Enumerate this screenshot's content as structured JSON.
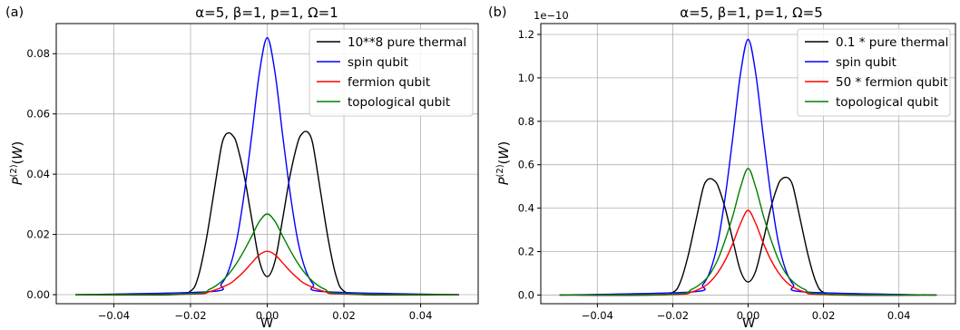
{
  "chart_data": [
    {
      "panel": "(a)",
      "type": "line",
      "title": "α=5, β=1, p=1, Ω=1",
      "xlabel": "W",
      "ylabel": "P(2)(W)",
      "xlim": [
        -0.055,
        0.055
      ],
      "ylim": [
        -0.003,
        0.09
      ],
      "xticks": [
        -0.04,
        -0.02,
        0.0,
        0.02,
        0.04
      ],
      "xtick_labels": [
        "−0.04",
        "−0.02",
        "0.00",
        "0.02",
        "0.04"
      ],
      "yticks": [
        0.0,
        0.02,
        0.04,
        0.06,
        0.08
      ],
      "ytick_labels": [
        "0.00",
        "0.02",
        "0.04",
        "0.06",
        "0.08"
      ],
      "y_offset_label": "",
      "grid": true,
      "legend_position": "upper-right",
      "series": [
        {
          "name": "10**8 pure thermal",
          "color": "#000000",
          "x": [
            -0.05,
            -0.025,
            -0.02,
            -0.018,
            -0.016,
            -0.014,
            -0.012,
            -0.011,
            -0.01,
            -0.009,
            -0.008,
            -0.006,
            -0.004,
            -0.002,
            0.0,
            0.002,
            0.004,
            0.006,
            0.008,
            0.009,
            0.01,
            0.011,
            0.012,
            0.014,
            0.016,
            0.018,
            0.02,
            0.025,
            0.05
          ],
          "y": [
            0.0,
            0.0,
            0.0012,
            0.0059,
            0.0175,
            0.0331,
            0.0489,
            0.0528,
            0.0537,
            0.0528,
            0.0503,
            0.0395,
            0.0249,
            0.011,
            0.006,
            0.011,
            0.025,
            0.0398,
            0.0507,
            0.0533,
            0.0542,
            0.0533,
            0.0493,
            0.0334,
            0.0177,
            0.006,
            0.0012,
            0.0,
            0.0
          ]
        },
        {
          "name": "spin qubit",
          "color": "#0000ff",
          "x": [
            -0.05,
            -0.015,
            -0.012,
            -0.01,
            -0.008,
            -0.006,
            -0.004,
            -0.002,
            0.0,
            0.002,
            0.004,
            0.006,
            0.008,
            0.01,
            0.012,
            0.015,
            0.05
          ],
          "y": [
            0.0,
            0.001,
            0.0035,
            0.0082,
            0.0178,
            0.0335,
            0.0532,
            0.074,
            0.0853,
            0.074,
            0.0532,
            0.0335,
            0.0178,
            0.0082,
            0.0035,
            0.001,
            0.0
          ]
        },
        {
          "name": "fermion qubit",
          "color": "#ff0000",
          "x": [
            -0.05,
            -0.02,
            -0.015,
            -0.01,
            -0.008,
            -0.006,
            -0.004,
            -0.002,
            0.0,
            0.002,
            0.004,
            0.006,
            0.008,
            0.01,
            0.015,
            0.02,
            0.05
          ],
          "y": [
            0.0,
            0.0002,
            0.001,
            0.0035,
            0.0054,
            0.0078,
            0.0106,
            0.0133,
            0.0144,
            0.0133,
            0.0106,
            0.0078,
            0.0054,
            0.0035,
            0.001,
            0.0002,
            0.0
          ]
        },
        {
          "name": "topological qubit",
          "color": "#008000",
          "x": [
            -0.05,
            -0.02,
            -0.015,
            -0.012,
            -0.01,
            -0.008,
            -0.006,
            -0.004,
            -0.002,
            0.0,
            0.002,
            0.004,
            0.006,
            0.008,
            0.01,
            0.012,
            0.015,
            0.02,
            0.05
          ],
          "y": [
            0.0,
            0.0003,
            0.0018,
            0.0043,
            0.0069,
            0.0104,
            0.0147,
            0.0195,
            0.0244,
            0.0268,
            0.0244,
            0.0195,
            0.0147,
            0.0104,
            0.0069,
            0.0043,
            0.0018,
            0.0003,
            0.0
          ]
        }
      ]
    },
    {
      "panel": "(b)",
      "type": "line",
      "title": "α=5, β=1, p=1, Ω=5",
      "xlabel": "W",
      "ylabel": "P(2)(W)",
      "xlim": [
        -0.055,
        0.055
      ],
      "ylim": [
        -0.04,
        1.25
      ],
      "xticks": [
        -0.04,
        -0.02,
        0.0,
        0.02,
        0.04
      ],
      "xtick_labels": [
        "−0.04",
        "−0.02",
        "0.00",
        "0.02",
        "0.04"
      ],
      "yticks": [
        0.0,
        0.2,
        0.4,
        0.6,
        0.8,
        1.0,
        1.2
      ],
      "ytick_labels": [
        "0.0",
        "0.2",
        "0.4",
        "0.6",
        "0.8",
        "1.0",
        "1.2"
      ],
      "y_offset_label": "1e−10",
      "grid": true,
      "legend_position": "upper-right",
      "series": [
        {
          "name": "0.1 * pure thermal",
          "color": "#000000",
          "x": [
            -0.05,
            -0.025,
            -0.02,
            -0.018,
            -0.016,
            -0.014,
            -0.012,
            -0.011,
            -0.01,
            -0.009,
            -0.008,
            -0.006,
            -0.004,
            -0.002,
            0.0,
            0.002,
            0.004,
            0.006,
            0.008,
            0.009,
            0.01,
            0.011,
            0.012,
            0.014,
            0.016,
            0.018,
            0.02,
            0.025,
            0.05
          ],
          "y": [
            0.0,
            0.0,
            0.012,
            0.059,
            0.175,
            0.331,
            0.489,
            0.527,
            0.536,
            0.527,
            0.502,
            0.394,
            0.248,
            0.11,
            0.06,
            0.11,
            0.25,
            0.4,
            0.51,
            0.535,
            0.542,
            0.533,
            0.494,
            0.334,
            0.177,
            0.06,
            0.012,
            0.0,
            0.0
          ]
        },
        {
          "name": "spin qubit",
          "color": "#0000ff",
          "x": [
            -0.05,
            -0.015,
            -0.012,
            -0.01,
            -0.008,
            -0.006,
            -0.004,
            -0.002,
            0.0,
            0.002,
            0.004,
            0.006,
            0.008,
            0.01,
            0.012,
            0.015,
            0.05
          ],
          "y": [
            0.0,
            0.014,
            0.048,
            0.114,
            0.245,
            0.462,
            0.735,
            1.022,
            1.177,
            1.022,
            0.735,
            0.462,
            0.245,
            0.114,
            0.048,
            0.014,
            0.0
          ]
        },
        {
          "name": "50 * fermion qubit",
          "color": "#ff0000",
          "x": [
            -0.05,
            -0.02,
            -0.015,
            -0.012,
            -0.01,
            -0.008,
            -0.006,
            -0.004,
            -0.002,
            0.0,
            0.002,
            0.004,
            0.006,
            0.008,
            0.01,
            0.012,
            0.015,
            0.02,
            0.05
          ],
          "y": [
            0.0,
            0.002,
            0.014,
            0.036,
            0.062,
            0.104,
            0.163,
            0.24,
            0.33,
            0.39,
            0.33,
            0.24,
            0.163,
            0.104,
            0.062,
            0.036,
            0.014,
            0.002,
            0.0
          ]
        },
        {
          "name": "topological qubit",
          "color": "#008000",
          "x": [
            -0.05,
            -0.02,
            -0.015,
            -0.012,
            -0.01,
            -0.008,
            -0.006,
            -0.004,
            -0.002,
            0.0,
            0.002,
            0.004,
            0.006,
            0.008,
            0.01,
            0.012,
            0.015,
            0.02,
            0.05
          ],
          "y": [
            0.0,
            0.004,
            0.026,
            0.06,
            0.1,
            0.165,
            0.258,
            0.368,
            0.497,
            0.583,
            0.497,
            0.368,
            0.258,
            0.165,
            0.1,
            0.06,
            0.026,
            0.004,
            0.0
          ]
        }
      ]
    }
  ]
}
